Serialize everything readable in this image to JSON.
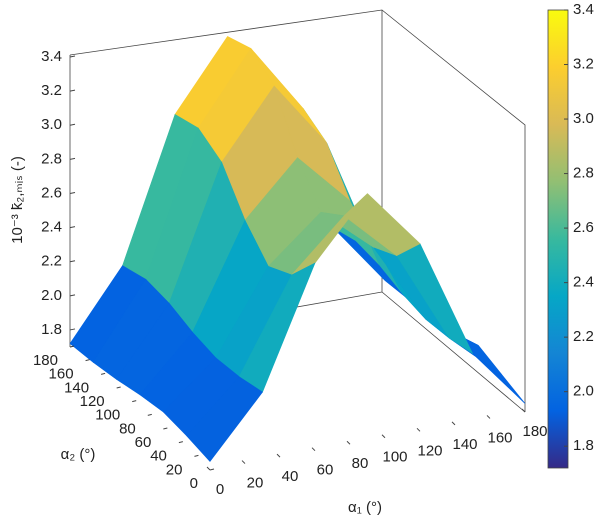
{
  "chart_data": {
    "type": "surface",
    "x_label": "α₁ (°)",
    "y_label": "α₂ (°)",
    "z_label": "10⁻³ k̄₂,ₘᵢₛ (-)",
    "x": [
      0,
      30,
      60,
      90,
      120,
      150,
      180
    ],
    "y": [
      0,
      30,
      60,
      90,
      120,
      150,
      180
    ],
    "z": [
      [
        1.75,
        2.1,
        2.8,
        3.15,
        2.8,
        2.1,
        1.75
      ],
      [
        1.78,
        2.07,
        2.61,
        2.9,
        2.61,
        2.07,
        1.8
      ],
      [
        1.8,
        2.06,
        2.54,
        2.8,
        2.54,
        2.06,
        1.85
      ],
      [
        1.78,
        2.09,
        2.69,
        3.0,
        2.69,
        2.09,
        1.8
      ],
      [
        1.75,
        2.14,
        2.91,
        3.3,
        2.91,
        2.14,
        1.78
      ],
      [
        1.73,
        2.16,
        2.99,
        3.4,
        2.99,
        2.16,
        1.76
      ],
      [
        1.72,
        2.12,
        2.95,
        3.35,
        2.95,
        2.12,
        1.75
      ]
    ],
    "xlim": [
      0,
      180
    ],
    "ylim": [
      0,
      180
    ],
    "zlim": [
      1.7,
      3.4
    ],
    "xticks": [
      0,
      20,
      40,
      60,
      80,
      100,
      120,
      140,
      160,
      180
    ],
    "yticks": [
      0,
      20,
      40,
      60,
      80,
      100,
      120,
      140,
      160,
      180
    ],
    "zticks": [
      1.8,
      {
        "value": 2,
        "label": "2.0"
      },
      2.2,
      2.4,
      2.6,
      2.8,
      {
        "value": 3,
        "label": "3.0"
      },
      3.2,
      3.4
    ],
    "clim": [
      1.72,
      3.4
    ],
    "cticks": [
      1.8,
      {
        "value": 2,
        "label": "2.0"
      },
      2.2,
      2.4,
      2.6,
      2.8,
      {
        "value": 3,
        "label": "3.0"
      },
      3.2,
      3.4
    ],
    "colormap": [
      "#352a87",
      "#0363e1",
      "#1485d4",
      "#06a7c6",
      "#38b99e",
      "#92bf73",
      "#d9ba56",
      "#fcce2e",
      "#f9fb0e"
    ],
    "colorbar": true
  }
}
